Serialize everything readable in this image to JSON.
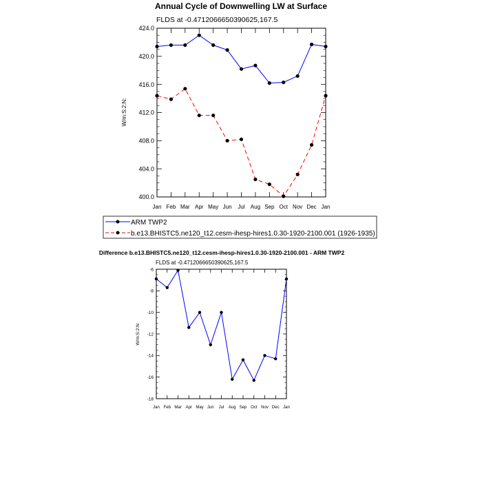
{
  "chart_data": [
    {
      "type": "line",
      "title": "Annual Cycle of Downwelling LW at Surface",
      "subtitle": "FLDS at -0.4712066650390625,167.5",
      "ylabel": "W/m:S:2:N:",
      "xlabel": "",
      "categories": [
        "Jan",
        "Feb",
        "Mar",
        "Apr",
        "May",
        "Jun",
        "Jul",
        "Aug",
        "Sep",
        "Oct",
        "Nov",
        "Dec",
        "Jan"
      ],
      "ylim": [
        400,
        424
      ],
      "yticks": [
        "400.0",
        "404.0",
        "408.0",
        "412.0",
        "416.0",
        "420.0",
        "424.0"
      ],
      "series": [
        {
          "name": "ARM TWP2",
          "color": "#0000ff",
          "dash": "solid",
          "values": [
            421.4,
            421.6,
            421.6,
            423.0,
            421.6,
            420.9,
            418.2,
            418.7,
            416.2,
            416.3,
            417.2,
            421.7,
            421.4
          ]
        },
        {
          "name": "b.e13.BHISTC5.ne120_t12.cesm-ihesp-hires1.0.30-1920-2100.001 (1926-1935)",
          "color": "#ff0000",
          "dash": "dashed",
          "values": [
            414.4,
            413.9,
            415.4,
            411.6,
            411.6,
            408.0,
            408.2,
            402.5,
            401.8,
            400.1,
            403.2,
            407.4,
            414.4
          ]
        }
      ],
      "legend_position": "bottom"
    },
    {
      "type": "line",
      "title": "Difference b.e13.BHISTC5.ne120_t12.cesm-ihesp-hires1.0.30-1920-2100.001 - ARM TWP2",
      "subtitle": "FLDS at -0.4712066650390625,167.5",
      "ylabel": "W/m:S:2:N:",
      "xlabel": "",
      "categories": [
        "Jan",
        "Feb",
        "Mar",
        "Apr",
        "May",
        "Jun",
        "Jul",
        "Aug",
        "Sep",
        "Oct",
        "Nov",
        "Dec",
        "Jan"
      ],
      "ylim": [
        -18,
        -6
      ],
      "yticks": [
        "-18",
        "-16",
        "-14",
        "-12",
        "-10",
        "-8",
        "-6"
      ],
      "series": [
        {
          "color": "#0000ff",
          "dash": "solid",
          "values": [
            -6.9,
            -7.7,
            -6.1,
            -11.4,
            -10.0,
            -13.0,
            -10.0,
            -16.2,
            -14.4,
            -16.3,
            -14.0,
            -14.3,
            -6.9
          ]
        }
      ]
    }
  ]
}
